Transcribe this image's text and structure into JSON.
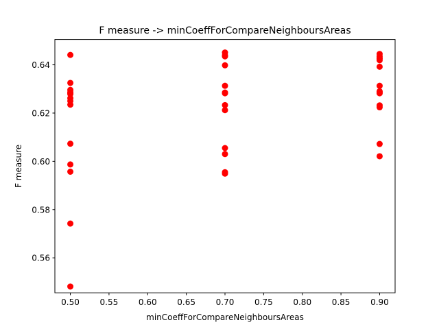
{
  "chart_data": {
    "type": "scatter",
    "title": "F measure -> minCoeffForCompareNeighboursAreas",
    "xlabel": "minCoeffForCompareNeighboursAreas",
    "ylabel": "F measure",
    "xlim": [
      0.48,
      0.92
    ],
    "ylim": [
      0.5455,
      0.6505
    ],
    "xticks": [
      "0.50",
      "0.55",
      "0.60",
      "0.65",
      "0.70",
      "0.75",
      "0.80",
      "0.85",
      "0.90"
    ],
    "yticks": [
      "0.56",
      "0.58",
      "0.60",
      "0.62",
      "0.64"
    ],
    "grid": false,
    "marker_color": "#ff0000",
    "series": [
      {
        "x": [
          0.5,
          0.5,
          0.5,
          0.5,
          0.5,
          0.5,
          0.5,
          0.5,
          0.5,
          0.5,
          0.5,
          0.5,
          0.5,
          0.5,
          0.7,
          0.7,
          0.7,
          0.7,
          0.7,
          0.7,
          0.7,
          0.7,
          0.7,
          0.7,
          0.7,
          0.7,
          0.7,
          0.9,
          0.9,
          0.9,
          0.9,
          0.9,
          0.9,
          0.9,
          0.9,
          0.9,
          0.9,
          0.9,
          0.9,
          0.9,
          0.9
        ],
        "y": [
          0.6441,
          0.6325,
          0.6296,
          0.6282,
          0.6262,
          0.625,
          0.6235,
          0.6073,
          0.5987,
          0.5957,
          0.5742,
          0.5481,
          0.6287,
          0.6279,
          0.6451,
          0.6435,
          0.6398,
          0.6313,
          0.6282,
          0.6233,
          0.6212,
          0.6055,
          0.603,
          0.5955,
          0.5949,
          0.6285,
          0.644,
          0.6445,
          0.6435,
          0.6425,
          0.6419,
          0.6392,
          0.6313,
          0.629,
          0.6282,
          0.6232,
          0.6224,
          0.6072,
          0.6021,
          0.6428,
          0.6286
        ]
      }
    ]
  }
}
